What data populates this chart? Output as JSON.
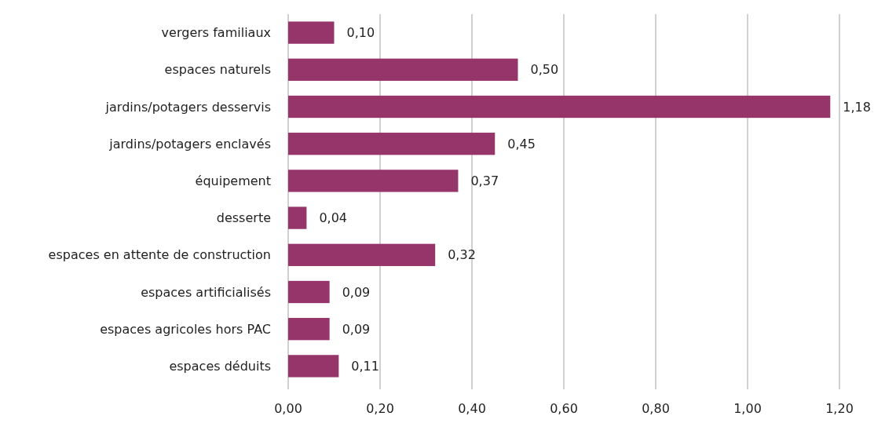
{
  "chart_data": {
    "type": "bar",
    "orientation": "horizontal",
    "categories": [
      "vergers familiaux",
      "espaces naturels",
      "jardins/potagers desservis",
      "jardins/potagers enclavés",
      "équipement",
      "desserte",
      "espaces en attente de construction",
      "espaces artificialisés",
      "espaces agricoles hors PAC",
      "espaces déduits"
    ],
    "values": [
      0.1,
      0.5,
      1.18,
      0.45,
      0.37,
      0.04,
      0.32,
      0.09,
      0.09,
      0.11
    ],
    "value_labels": [
      "0,10",
      "0,50",
      "1,18",
      "0,45",
      "0,37",
      "0,04",
      "0,32",
      "0,09",
      "0,09",
      "0,11"
    ],
    "color": "#96356a",
    "xlim": [
      0,
      1.2
    ],
    "xticks": [
      {
        "value": 0,
        "label": "0,00"
      },
      {
        "value": 0.2,
        "label": "0,20"
      },
      {
        "value": 0.4,
        "label": "0,40"
      },
      {
        "value": 0.6,
        "label": "0,60"
      },
      {
        "value": 0.8,
        "label": "0,80"
      },
      {
        "value": 1,
        "label": "1,00"
      },
      {
        "value": 1.2,
        "label": "1,20"
      }
    ],
    "grid": "x"
  }
}
